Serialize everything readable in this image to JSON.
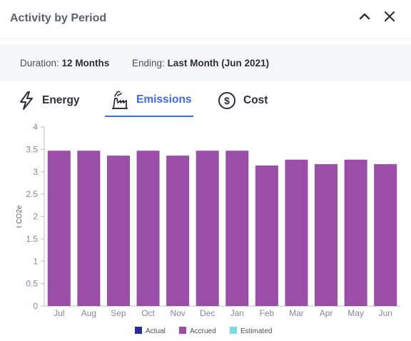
{
  "header": {
    "title": "Activity by Period"
  },
  "filters": {
    "duration_label": "Duration:",
    "duration_value": "12 Months",
    "ending_label": "Ending:",
    "ending_value": "Last Month (Jun 2021)"
  },
  "tabs": [
    {
      "label": "Energy",
      "icon": "lightning-icon",
      "active": false
    },
    {
      "label": "Emissions",
      "icon": "factory-icon",
      "active": true
    },
    {
      "label": "Cost",
      "icon": "dollar-coin-icon",
      "active": false
    }
  ],
  "colors": {
    "accent": "#3f6be0",
    "actual": "#2e2b9c",
    "accrued": "#9b4ea7",
    "estimated": "#7dd9df"
  },
  "chart_data": {
    "type": "bar",
    "categories": [
      "Jul",
      "Aug",
      "Sep",
      "Oct",
      "Nov",
      "Dec",
      "Jan",
      "Feb",
      "Mar",
      "Apr",
      "May",
      "Jun"
    ],
    "series": [
      {
        "name": "Accrued",
        "values": [
          3.47,
          3.47,
          3.36,
          3.47,
          3.36,
          3.47,
          3.47,
          3.14,
          3.27,
          3.17,
          3.27,
          3.17
        ]
      }
    ],
    "legend": [
      "Actual",
      "Accrued",
      "Estimated"
    ],
    "legend_position": "bottom",
    "ylabel": "t CO2e",
    "ylim": [
      0,
      4
    ],
    "yticks": [
      0,
      0.5,
      1,
      1.5,
      2,
      2.5,
      3,
      3.5,
      4
    ],
    "grid": false
  }
}
